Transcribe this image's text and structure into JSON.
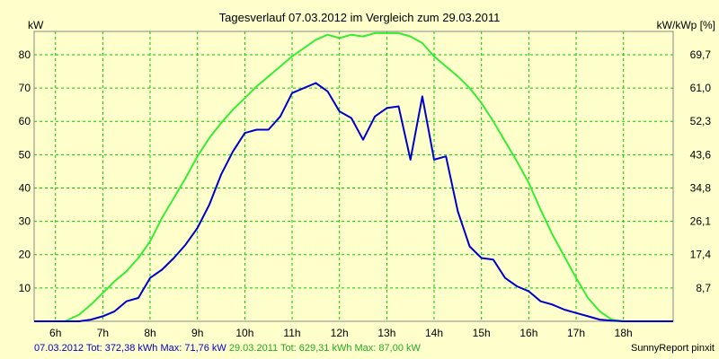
{
  "chart_data": {
    "type": "line",
    "title": "Tagesverlauf 07.03.2012 im Vergleich zum 29.03.2011",
    "ylabel_left": "kW",
    "ylabel_right": "kW/kWp [%]",
    "xlabel": "",
    "ylim": [
      0,
      87
    ],
    "xlim": [
      5.55,
      19.05
    ],
    "grid": true,
    "categories": [
      "6h",
      "7h",
      "8h",
      "9h",
      "10h",
      "11h",
      "12h",
      "13h",
      "14h",
      "15h",
      "16h",
      "17h",
      "18h"
    ],
    "x_ticks": [
      6,
      7,
      8,
      9,
      10,
      11,
      12,
      13,
      14,
      15,
      16,
      17,
      18
    ],
    "y_ticks_left": [
      10,
      20,
      30,
      40,
      50,
      60,
      70,
      80
    ],
    "y_ticks_right": [
      "8,7",
      "17,4",
      "26,1",
      "34,8",
      "43,6",
      "52,3",
      "61,0",
      "69,7"
    ],
    "colors": {
      "background": "#FFFFCC",
      "grid": "#00CC00",
      "series1": "#0000CC",
      "series2": "#33EE33",
      "axes": "#888888"
    },
    "series": [
      {
        "name": "07.03.2012",
        "color": "#0000CC",
        "x": [
          5.55,
          6.5,
          6.75,
          7.0,
          7.25,
          7.5,
          7.75,
          8.0,
          8.25,
          8.5,
          8.75,
          9.0,
          9.25,
          9.5,
          9.75,
          10.0,
          10.25,
          10.5,
          10.75,
          11.0,
          11.25,
          11.5,
          11.75,
          12.0,
          12.25,
          12.5,
          12.75,
          13.0,
          13.25,
          13.5,
          13.75,
          14.0,
          14.25,
          14.5,
          14.75,
          15.0,
          15.25,
          15.5,
          15.75,
          16.0,
          16.25,
          16.5,
          16.75,
          17.0,
          17.25,
          17.5,
          17.75,
          18.0,
          18.25,
          19.05
        ],
        "y": [
          0,
          0,
          0.5,
          1.5,
          3,
          6,
          7,
          13,
          15.5,
          19,
          23,
          28,
          35,
          44,
          51,
          56.5,
          57.5,
          57.5,
          61.5,
          68.5,
          70,
          71.5,
          69,
          63,
          61,
          54.5,
          61.5,
          64,
          64.5,
          48.5,
          67.5,
          48.5,
          49.5,
          33,
          22.5,
          19,
          18.5,
          13,
          10.5,
          9,
          6,
          5,
          3.5,
          2.5,
          1.5,
          0.5,
          0.2,
          0,
          0,
          0
        ]
      },
      {
        "name": "29.03.2011",
        "color": "#33EE33",
        "x": [
          5.55,
          6.2,
          6.5,
          6.75,
          7.0,
          7.25,
          7.5,
          7.75,
          8.0,
          8.25,
          8.5,
          8.75,
          9.0,
          9.25,
          9.5,
          9.75,
          10.0,
          10.25,
          10.5,
          10.75,
          11.0,
          11.25,
          11.5,
          11.75,
          12.0,
          12.25,
          12.5,
          12.75,
          13.0,
          13.25,
          13.5,
          13.75,
          14.0,
          14.25,
          14.5,
          14.75,
          15.0,
          15.25,
          15.5,
          15.75,
          16.0,
          16.25,
          16.5,
          16.75,
          17.0,
          17.25,
          17.5,
          17.75,
          18.0,
          18.25,
          18.45,
          18.6,
          19.05
        ],
        "y": [
          0,
          0,
          2,
          5,
          8.5,
          12,
          15,
          19,
          24,
          31,
          37,
          43,
          49.5,
          55,
          59.5,
          63.5,
          67,
          70.5,
          73.5,
          76.5,
          79.5,
          82,
          84.5,
          86,
          85,
          86,
          85.5,
          86.5,
          86.5,
          86.5,
          85.5,
          83.5,
          79.5,
          76.5,
          73.5,
          70,
          65.5,
          60,
          54,
          48,
          41.5,
          33.5,
          26,
          19.5,
          13,
          7,
          3,
          0.5,
          0,
          0,
          0,
          0,
          0
        ]
      }
    ]
  },
  "footer": {
    "series1_stats": "07.03.2012 Tot: 372,38 kWh Max: 71,76 kW",
    "series2_stats": "29.03.2011 Tot: 629,31 kWh Max: 87,00 kW",
    "brand": "SunnyReport pinxit"
  }
}
